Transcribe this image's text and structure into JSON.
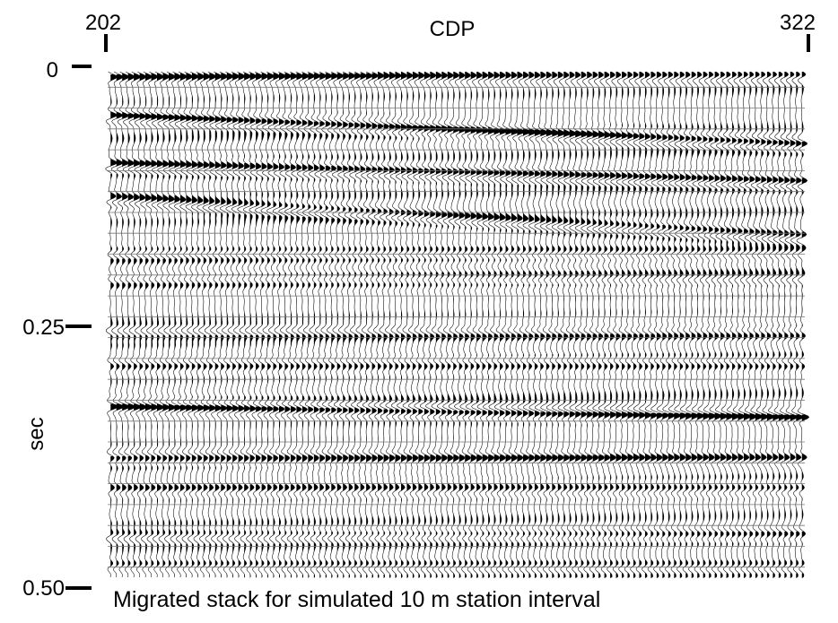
{
  "chart_data": {
    "type": "seismic-section",
    "title": "",
    "xlabel": "CDP",
    "ylabel": "sec",
    "xlim": [
      202,
      322
    ],
    "x_ticks": [
      "202",
      "322"
    ],
    "ylim": [
      0,
      0.5
    ],
    "y_ticks": [
      "0",
      "0.25",
      "0.50"
    ],
    "trace_count": 120,
    "reflectors": [
      {
        "t_start": 0.01,
        "t_end": 0.008,
        "amp": 0.8
      },
      {
        "t_start": 0.048,
        "t_end": 0.075,
        "amp": 1.0
      },
      {
        "t_start": 0.095,
        "t_end": 0.112,
        "amp": 1.0
      },
      {
        "t_start": 0.128,
        "t_end": 0.165,
        "amp": 0.9
      },
      {
        "t_start": 0.18,
        "t_end": 0.18,
        "amp": 0.55
      },
      {
        "t_start": 0.205,
        "t_end": 0.205,
        "amp": 0.5
      },
      {
        "t_start": 0.255,
        "t_end": 0.255,
        "amp": 0.55
      },
      {
        "t_start": 0.285,
        "t_end": 0.285,
        "amp": 0.55
      },
      {
        "t_start": 0.325,
        "t_end": 0.335,
        "amp": 1.0
      },
      {
        "t_start": 0.375,
        "t_end": 0.375,
        "amp": 0.7
      },
      {
        "t_start": 0.405,
        "t_end": 0.405,
        "amp": 0.55
      },
      {
        "t_start": 0.45,
        "t_end": 0.45,
        "amp": 0.55
      },
      {
        "t_start": 0.48,
        "t_end": 0.48,
        "amp": 0.5
      }
    ]
  },
  "caption": "Migrated stack for simulated 10 m station interval",
  "colors": {
    "ink": "#000000",
    "paper": "#ffffff",
    "gridline": "#777777"
  }
}
